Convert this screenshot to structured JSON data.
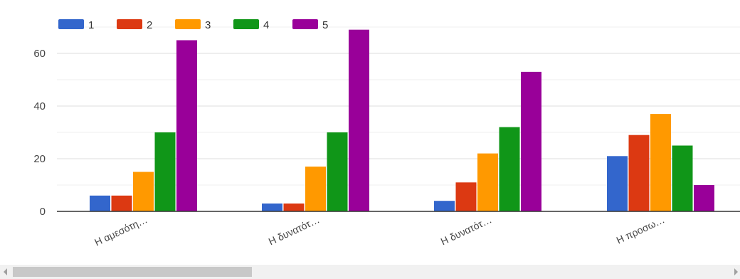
{
  "chart_data": {
    "type": "bar",
    "categories": [
      "Η αμεσότη…",
      "Η δυνατότ…",
      "Η δυνατότ…",
      "Η προσω…"
    ],
    "series": [
      {
        "name": "1",
        "values": [
          6,
          3,
          4,
          21
        ],
        "color": "#3366cc"
      },
      {
        "name": "2",
        "values": [
          6,
          3,
          11,
          29
        ],
        "color": "#dc3912"
      },
      {
        "name": "3",
        "values": [
          15,
          17,
          22,
          37
        ],
        "color": "#ff9900"
      },
      {
        "name": "4",
        "values": [
          30,
          30,
          32,
          25
        ],
        "color": "#109618"
      },
      {
        "name": "5",
        "values": [
          65,
          69,
          53,
          10
        ],
        "color": "#990099"
      }
    ],
    "yticks": [
      0,
      20,
      40,
      60
    ],
    "ylim": [
      0,
      70
    ],
    "grid": true,
    "legend_position": "top-left"
  },
  "scrollbar": {
    "left_arrow": "left-arrow-icon",
    "right_arrow": "right-arrow-icon"
  }
}
